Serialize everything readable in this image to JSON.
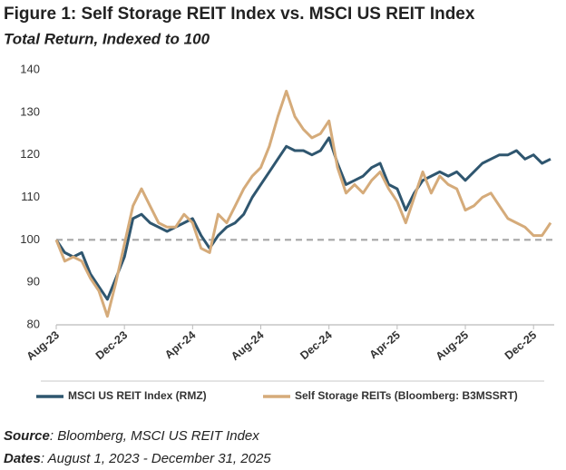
{
  "chart_data": {
    "type": "line",
    "title": "Figure 1: Self Storage REIT Index vs. MSCI US REIT Index",
    "subtitle": "Total Return, Indexed to 100",
    "categories": [
      "Aug-23",
      null,
      null,
      null,
      null,
      null,
      null,
      null,
      "Dec-23",
      null,
      null,
      null,
      null,
      null,
      null,
      null,
      "Apr-24",
      null,
      null,
      null,
      null,
      null,
      null,
      null,
      "Aug-24",
      null,
      null,
      null,
      null,
      null,
      null,
      null,
      "Dec-24",
      null,
      null,
      null,
      null,
      null,
      null,
      null,
      "Apr-25",
      null,
      null,
      null,
      null,
      null,
      null,
      null,
      "Aug-25",
      null,
      null,
      null,
      null,
      null,
      null,
      null,
      "Dec-25",
      null,
      null
    ],
    "series": [
      {
        "name": "MSCI US REIT Index (RMZ)",
        "color": "#2f566f",
        "values": [
          100,
          97,
          96,
          97,
          92,
          89,
          86,
          91,
          96,
          105,
          106,
          104,
          103,
          102,
          103,
          104,
          105,
          101,
          98,
          101,
          103,
          104,
          106,
          110,
          113,
          116,
          119,
          122,
          121,
          121,
          120,
          121,
          124,
          118,
          113,
          114,
          115,
          117,
          118,
          113,
          112,
          107,
          111,
          114,
          115,
          116,
          115,
          116,
          114,
          116,
          118,
          119,
          120,
          120,
          121,
          119,
          120,
          118,
          119
        ]
      },
      {
        "name": "Self Storage REITs (Bloomberg: B3MSSRT)",
        "color": "#d5ab7a",
        "values": [
          100,
          95,
          96,
          95,
          91,
          88,
          82,
          90,
          99,
          108,
          112,
          108,
          104,
          103,
          103,
          106,
          104,
          98,
          97,
          106,
          104,
          108,
          112,
          115,
          117,
          122,
          129,
          135,
          129,
          126,
          124,
          125,
          128,
          117,
          111,
          113,
          111,
          114,
          116,
          112,
          109,
          104,
          110,
          116,
          111,
          115,
          113,
          112,
          107,
          108,
          110,
          111,
          108,
          105,
          104,
          103,
          101,
          101,
          104
        ]
      }
    ],
    "ylim": [
      80,
      140
    ],
    "yticks": [
      80,
      90,
      100,
      110,
      120,
      130,
      140
    ],
    "baseline": 100,
    "grid": false,
    "legend": "bottom"
  },
  "footer": {
    "source_label": "Source",
    "source_text": ": Bloomberg, MSCI US REIT Index",
    "dates_label": "Dates",
    "dates_text": ": August 1, 2023 - December 31, 2025"
  }
}
